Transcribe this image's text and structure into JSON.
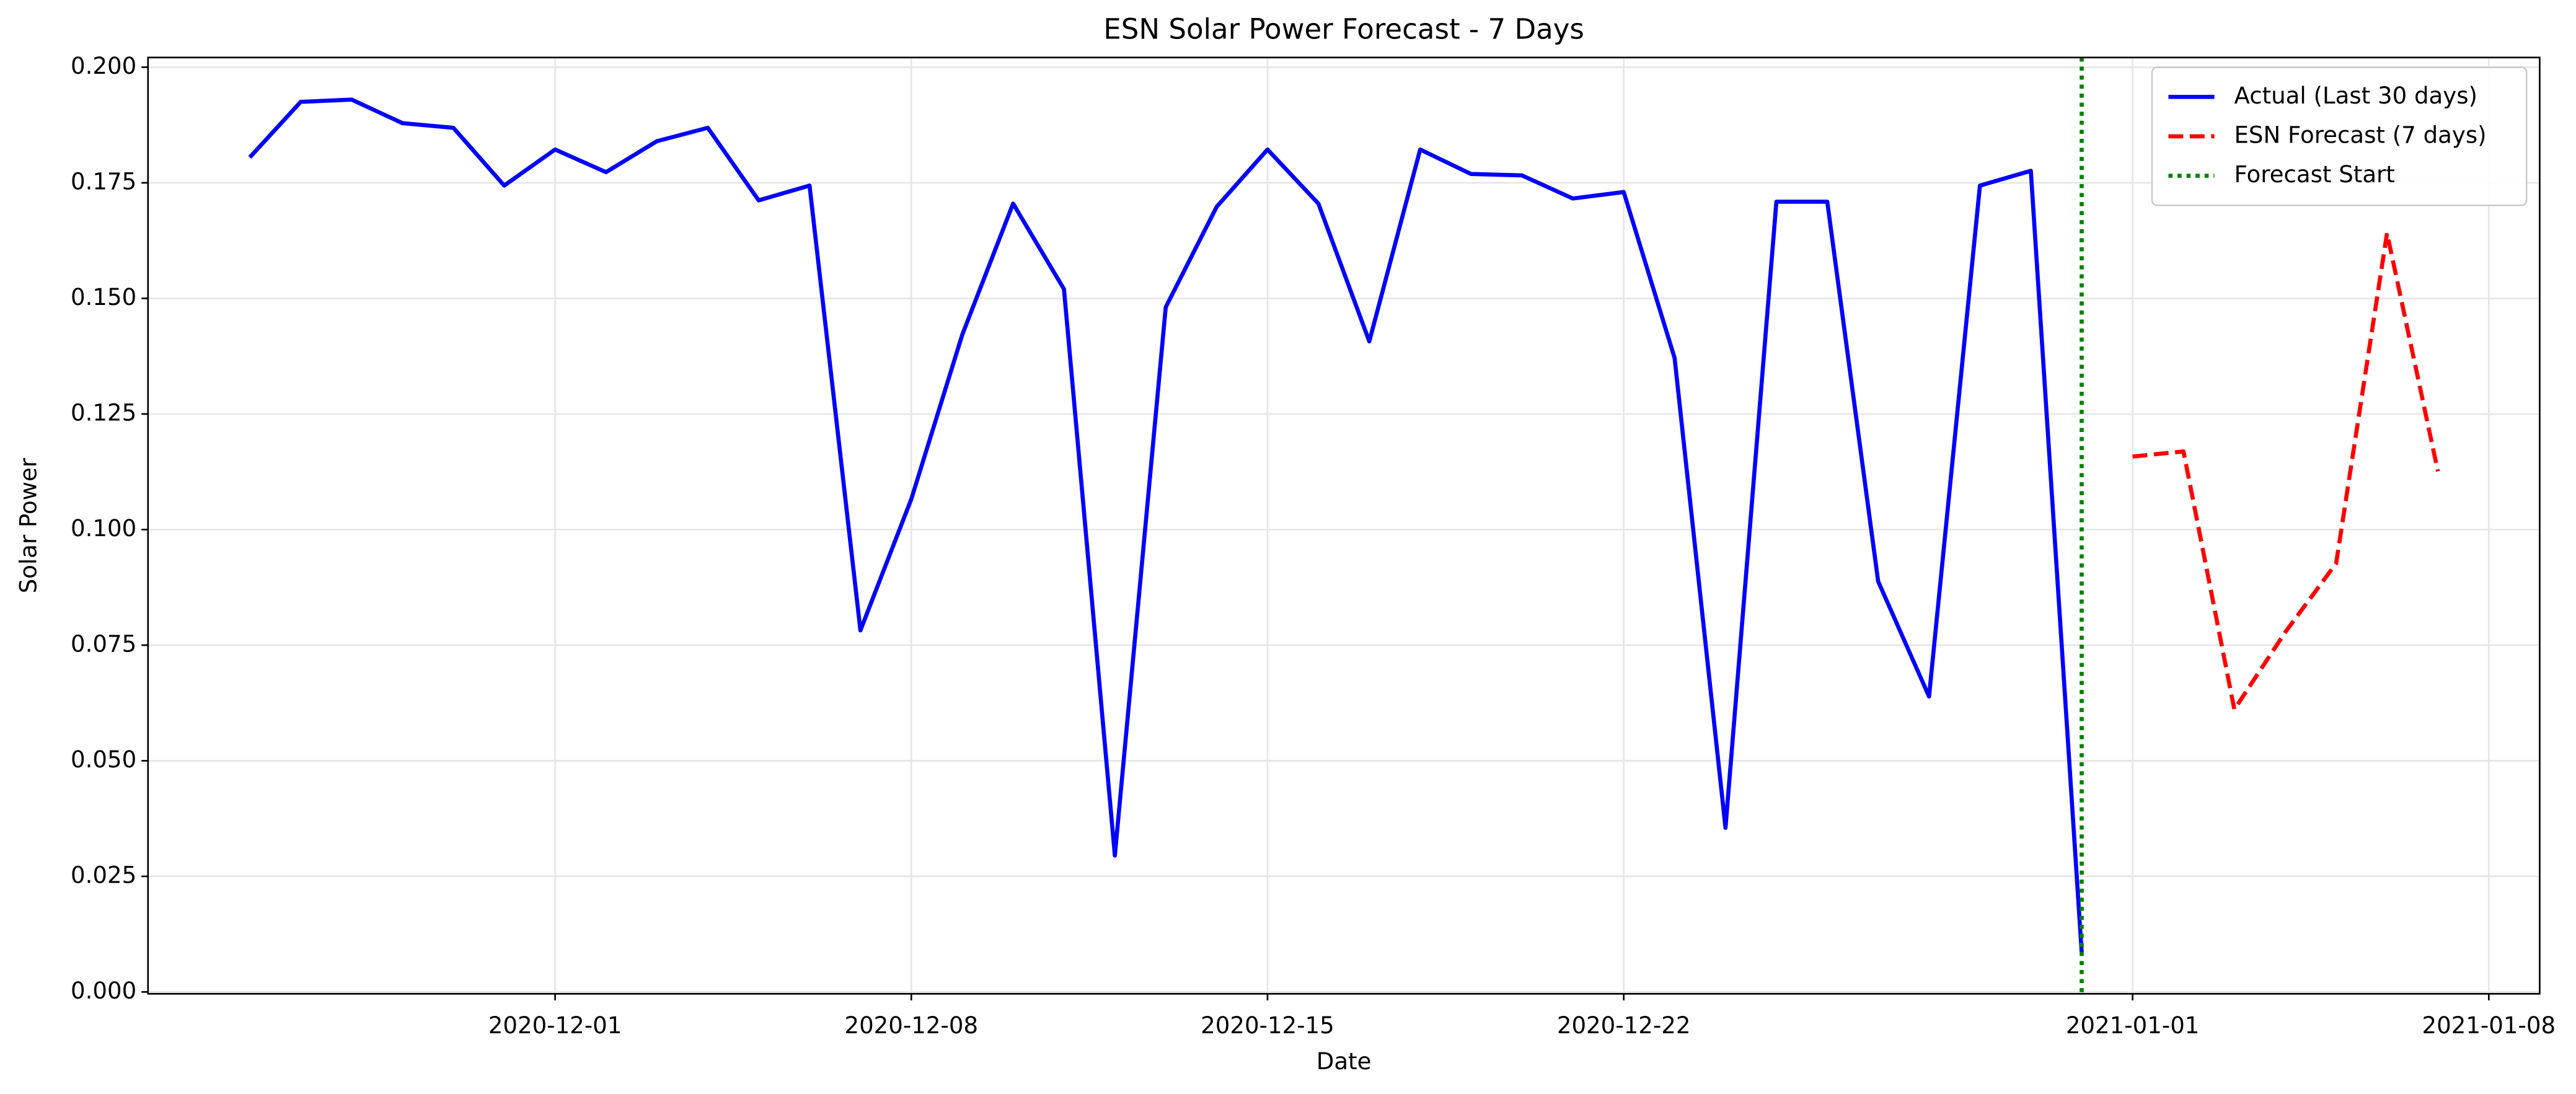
{
  "chart_data": {
    "type": "line",
    "title": "ESN Solar Power Forecast - 7 Days",
    "xlabel": "Date",
    "ylabel": "Solar Power",
    "series": [
      {
        "name": "Actual (Last 30 days)",
        "color": "#0000ff",
        "style": "solid",
        "x": [
          "2020-11-25",
          "2020-11-26",
          "2020-11-27",
          "2020-11-28",
          "2020-11-29",
          "2020-11-30",
          "2020-12-01",
          "2020-12-02",
          "2020-12-03",
          "2020-12-04",
          "2020-12-05",
          "2020-12-06",
          "2020-12-07",
          "2020-12-08",
          "2020-12-09",
          "2020-12-10",
          "2020-12-11",
          "2020-12-12",
          "2020-12-13",
          "2020-12-14",
          "2020-12-15",
          "2020-12-16",
          "2020-12-17",
          "2020-12-18",
          "2020-12-19",
          "2020-12-20",
          "2020-12-21",
          "2020-12-22",
          "2020-12-23",
          "2020-12-24",
          "2020-12-25",
          "2020-12-26",
          "2020-12-27",
          "2020-12-28",
          "2020-12-29",
          "2020-12-30",
          "2020-12-31"
        ],
        "values": [
          0.1805,
          0.1925,
          0.193,
          0.1879,
          0.1869,
          0.1744,
          0.1822,
          0.1773,
          0.184,
          0.1869,
          0.1712,
          0.1744,
          0.0782,
          0.1066,
          0.1421,
          0.1705,
          0.152,
          0.0295,
          0.1481,
          0.1698,
          0.1822,
          0.1705,
          0.1407,
          0.1822,
          0.1769,
          0.1766,
          0.1716,
          0.173,
          0.1371,
          0.0355,
          0.1709,
          0.1709,
          0.0888,
          0.0639,
          0.1744,
          0.1776,
          0.0085
        ]
      },
      {
        "name": "ESN Forecast (7 days)",
        "color": "#ff0000",
        "style": "dashed",
        "x": [
          "2021-01-01",
          "2021-01-02",
          "2021-01-03",
          "2021-01-04",
          "2021-01-05",
          "2021-01-06",
          "2021-01-07"
        ],
        "values": [
          0.1158,
          0.1169,
          0.0611,
          0.0778,
          0.0927,
          0.1641,
          0.1126
        ]
      }
    ],
    "vlines": [
      {
        "name": "Forecast Start",
        "color": "#008000",
        "style": "dotted",
        "x": "2020-12-31"
      }
    ],
    "xlim": [
      "2020-11-23",
      "2021-01-09"
    ],
    "xticks": [
      "2020-12-01",
      "2020-12-08",
      "2020-12-15",
      "2020-12-22",
      "2021-01-01",
      "2021-01-08"
    ],
    "ylim": [
      -0.0004,
      0.2021
    ],
    "yticks": [
      {
        "value": 0,
        "label": "0.000"
      },
      {
        "value": 0.025,
        "label": "0.025"
      },
      {
        "value": 0.05,
        "label": "0.050"
      },
      {
        "value": 0.075,
        "label": "0.075"
      },
      {
        "value": 0.1,
        "label": "0.100"
      },
      {
        "value": 0.125,
        "label": "0.125"
      },
      {
        "value": 0.15,
        "label": "0.150"
      },
      {
        "value": 0.175,
        "label": "0.175"
      },
      {
        "value": 0.2,
        "label": "0.200"
      }
    ],
    "grid": true,
    "legend": "upper right"
  }
}
